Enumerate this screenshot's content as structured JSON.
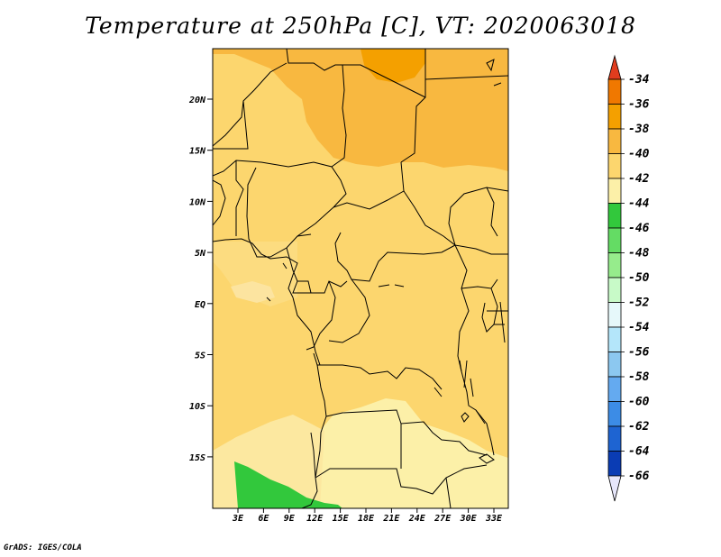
{
  "title": "Temperature at 250hPa [C], VT: 2020063018",
  "credit": "GrADS: IGES/COLA",
  "map": {
    "lat_labels": [
      "20N",
      "15N",
      "10N",
      "5N",
      "EQ",
      "5S",
      "10S",
      "15S"
    ],
    "lon_labels": [
      "3E",
      "6E",
      "9E",
      "12E",
      "15E",
      "18E",
      "21E",
      "24E",
      "27E",
      "30E",
      "33E"
    ]
  },
  "colorbar": {
    "labels": [
      "-34",
      "-36",
      "-38",
      "-40",
      "-42",
      "-44",
      "-46",
      "-48",
      "-50",
      "-52",
      "-54",
      "-56",
      "-58",
      "-60",
      "-62",
      "-64",
      "-66"
    ],
    "colors": [
      "#f05a0a",
      "#f07800",
      "#f4a000",
      "#f8b840",
      "#fcd66e",
      "#fcf0a8",
      "#32c83c",
      "#64dc64",
      "#96ec8c",
      "#c8fac8",
      "#e6f8fa",
      "#b4e6fa",
      "#8cc8f0",
      "#64aaf0",
      "#3c8ce6",
      "#1e64d2",
      "#0a3cb4",
      "#000078"
    ],
    "top_tip": "#e03c1e",
    "bottom_tip": "#e6e6fa"
  }
}
